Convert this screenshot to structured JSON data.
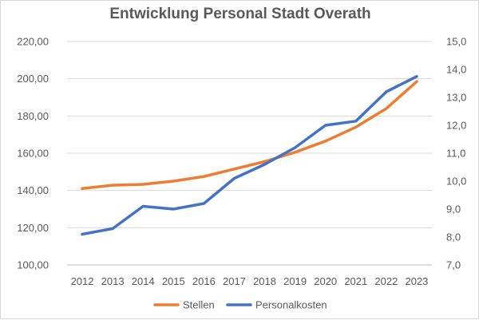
{
  "chart_data": {
    "type": "line",
    "title": "Entwicklung Personal Stadt Overath",
    "xlabel": "",
    "ylabel": "",
    "categories": [
      "2012",
      "2013",
      "2014",
      "2015",
      "2016",
      "2017",
      "2018",
      "2019",
      "2020",
      "2021",
      "2022",
      "2023"
    ],
    "y_left": {
      "range": [
        100,
        220
      ],
      "ticks": [
        "100,00",
        "120,00",
        "140,00",
        "160,00",
        "180,00",
        "200,00",
        "220,00"
      ]
    },
    "y_right": {
      "range": [
        7.0,
        15.0
      ],
      "ticks": [
        "7,0",
        "8,0",
        "9,0",
        "10,0",
        "11,0",
        "12,0",
        "13,0",
        "14,0",
        "15,0"
      ]
    },
    "grid": true,
    "legend_position": "bottom",
    "series": [
      {
        "name": "Stellen",
        "axis": "left",
        "color": "#ED7D31",
        "values": [
          141,
          142.8,
          143.3,
          145,
          147.5,
          151.5,
          155.5,
          160.5,
          166.5,
          174,
          184,
          198.5
        ]
      },
      {
        "name": "Personalkosten",
        "axis": "right",
        "color": "#4472C4",
        "values": [
          8.1,
          8.3,
          9.1,
          9.0,
          9.2,
          10.1,
          10.6,
          11.2,
          12.0,
          12.15,
          13.2,
          13.75
        ]
      }
    ]
  }
}
